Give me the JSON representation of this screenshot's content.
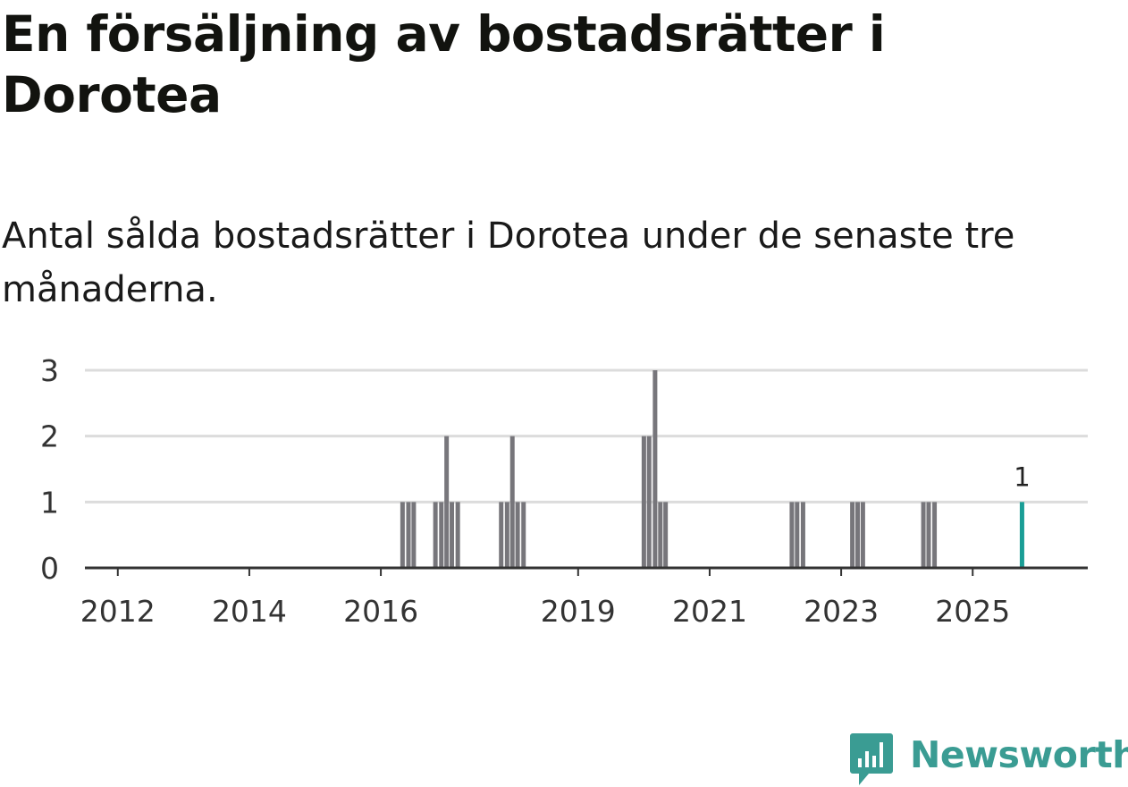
{
  "title": "En försäljning av bostadsrätter i Dorotea",
  "subtitle": "Antal sålda bostadsrätter i Dorotea under de senaste tre månaderna.",
  "brand": {
    "name": "Newsworthy",
    "icon": "newsworthy-logo-icon",
    "color": "#3a9c93"
  },
  "colors": {
    "bar": "#77767b",
    "highlight": "#1a9e96",
    "grid": "#dcdcdc",
    "axis": "#333333"
  },
  "chart_data": {
    "type": "bar",
    "title": "En försäljning av bostadsrätter i Dorotea",
    "subtitle": "Antal sålda bostadsrätter i Dorotea under de senaste tre månaderna.",
    "xlabel": "",
    "ylabel": "",
    "ylim": [
      0,
      3
    ],
    "yticks": [
      0,
      1,
      2,
      3
    ],
    "xlim": [
      2011.5,
      2026.75
    ],
    "xticks": [
      {
        "label": "2012",
        "value": 2012.0
      },
      {
        "label": "2014",
        "value": 2014.0
      },
      {
        "label": "2016",
        "value": 2016.0
      },
      {
        "label": "2019",
        "value": 2019.0
      },
      {
        "label": "2021",
        "value": 2021.0
      },
      {
        "label": "2023",
        "value": 2023.0
      },
      {
        "label": "2025",
        "value": 2025.0
      }
    ],
    "grid": true,
    "series": [
      {
        "name": "Antal sålda bostadsrätter",
        "x": [
          2016.33,
          2016.42,
          2016.5,
          2016.83,
          2016.92,
          2017.0,
          2017.08,
          2017.17,
          2017.83,
          2017.92,
          2018.0,
          2018.08,
          2018.17,
          2020.0,
          2020.08,
          2020.17,
          2020.25,
          2020.33,
          2022.25,
          2022.33,
          2022.42,
          2023.17,
          2023.25,
          2023.33,
          2024.25,
          2024.33,
          2024.42,
          2025.75
        ],
        "values": [
          1,
          1,
          1,
          1,
          1,
          2,
          1,
          1,
          1,
          1,
          2,
          1,
          1,
          2,
          2,
          3,
          1,
          1,
          1,
          1,
          1,
          1,
          1,
          1,
          1,
          1,
          1,
          1
        ]
      }
    ],
    "highlight": {
      "x": 2025.75,
      "value": 1,
      "label": "1"
    }
  }
}
